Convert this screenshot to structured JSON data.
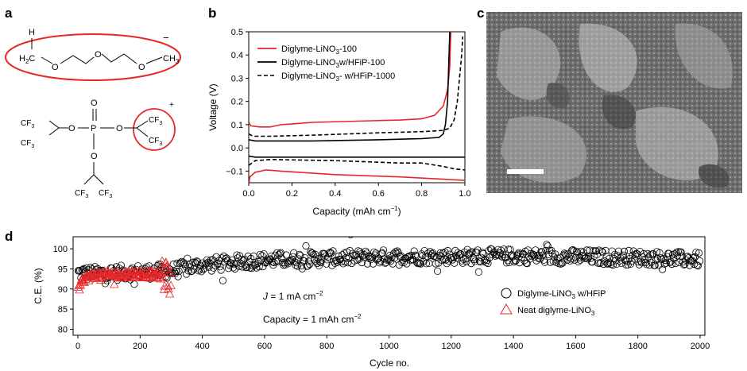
{
  "panel_labels": {
    "a": "a",
    "b": "b",
    "c": "c",
    "d": "d"
  },
  "colors": {
    "red": "#e8262a",
    "black": "#000000",
    "sem_bg": "#7a7a7a"
  },
  "panel_a": {
    "mol1": {
      "h": "H",
      "h2c": "H",
      "h2c_sub": "2",
      "h2c_tail": "C",
      "o": "O",
      "ch3": "CH",
      "ch3_sub": "3",
      "charge": "−"
    },
    "mol2": {
      "cf3": "CF",
      "cf3_sub": "3",
      "o": "O",
      "p": "P",
      "charge": "+"
    }
  },
  "panel_c": {
    "image": "sem-micrograph",
    "scale_bar": "scale-bar"
  },
  "chart_data": [
    {
      "type": "line",
      "panel": "b",
      "xlabel_main": "Capacity (mAh cm",
      "xlabel_sup": "−1",
      "xlabel_end": ")",
      "ylabel": "Voltage (V)",
      "xlim": [
        0,
        1.0
      ],
      "ylim": [
        -0.15,
        0.5
      ],
      "xticks": [
        "0.0",
        "0.2",
        "0.4",
        "0.6",
        "0.8",
        "1.0"
      ],
      "yticks": [
        "−0.1",
        "0.0",
        "0.1",
        "0.2",
        "0.3",
        "0.4",
        "0.5"
      ],
      "xtick_values": [
        0,
        0.2,
        0.4,
        0.6,
        0.8,
        1.0
      ],
      "ytick_values": [
        -0.1,
        0,
        0.1,
        0.2,
        0.3,
        0.4,
        0.5
      ],
      "legend_position": "top-left",
      "legend": [
        {
          "main": "Diglyme-LiNO",
          "sub": "3",
          "tail": "-100"
        },
        {
          "main": "Diglyme-LiNO",
          "sub": "3",
          "tail": "w/HFiP-100"
        },
        {
          "main": "Diglyme-LiNO",
          "sub": "3",
          "tail": "- w/HFiP-1000"
        }
      ],
      "series": [
        {
          "color": "#e8262a",
          "dash": "solid",
          "charge": [
            [
              0,
              0.11
            ],
            [
              0.01,
              0.095
            ],
            [
              0.05,
              0.09
            ],
            [
              0.1,
              0.09
            ],
            [
              0.15,
              0.1
            ],
            [
              0.3,
              0.11
            ],
            [
              0.5,
              0.115
            ],
            [
              0.7,
              0.12
            ],
            [
              0.8,
              0.125
            ],
            [
              0.86,
              0.14
            ],
            [
              0.9,
              0.18
            ],
            [
              0.92,
              0.25
            ],
            [
              0.93,
              0.35
            ],
            [
              0.935,
              0.5
            ]
          ],
          "discharge": [
            [
              0,
              -0.16
            ],
            [
              0.005,
              -0.125
            ],
            [
              0.03,
              -0.105
            ],
            [
              0.08,
              -0.095
            ],
            [
              0.15,
              -0.1
            ],
            [
              0.4,
              -0.115
            ],
            [
              0.7,
              -0.125
            ],
            [
              0.9,
              -0.135
            ],
            [
              1.0,
              -0.14
            ]
          ]
        },
        {
          "color": "#000000",
          "dash": "solid",
          "charge": [
            [
              0,
              0.035
            ],
            [
              0.03,
              0.03
            ],
            [
              0.3,
              0.03
            ],
            [
              0.6,
              0.035
            ],
            [
              0.8,
              0.04
            ],
            [
              0.88,
              0.045
            ],
            [
              0.9,
              0.06
            ],
            [
              0.91,
              0.1
            ],
            [
              0.92,
              0.2
            ],
            [
              0.925,
              0.35
            ],
            [
              0.93,
              0.5
            ]
          ],
          "discharge": [
            [
              0,
              -0.035
            ],
            [
              0.03,
              -0.04
            ],
            [
              0.5,
              -0.04
            ],
            [
              0.8,
              -0.04
            ],
            [
              1.0,
              -0.04
            ]
          ]
        },
        {
          "color": "#000000",
          "dash": "dashed",
          "charge": [
            [
              0,
              0.06
            ],
            [
              0.02,
              0.05
            ],
            [
              0.1,
              0.05
            ],
            [
              0.3,
              0.055
            ],
            [
              0.6,
              0.065
            ],
            [
              0.8,
              0.07
            ],
            [
              0.9,
              0.075
            ],
            [
              0.93,
              0.085
            ],
            [
              0.95,
              0.12
            ],
            [
              0.965,
              0.2
            ],
            [
              0.975,
              0.3
            ],
            [
              0.985,
              0.4
            ],
            [
              0.99,
              0.48
            ]
          ],
          "discharge": [
            [
              0,
              -0.075
            ],
            [
              0.03,
              -0.055
            ],
            [
              0.1,
              -0.05
            ],
            [
              0.4,
              -0.055
            ],
            [
              0.7,
              -0.065
            ],
            [
              0.8,
              -0.065
            ],
            [
              0.9,
              -0.08
            ],
            [
              0.95,
              -0.09
            ],
            [
              1.0,
              -0.095
            ]
          ]
        }
      ]
    },
    {
      "type": "scatter",
      "panel": "d",
      "xlabel": "Cycle no.",
      "ylabel": "C.E. (%)",
      "xlim": [
        0,
        2000
      ],
      "ylim": [
        80,
        103
      ],
      "xticks": [
        "0",
        "200",
        "400",
        "600",
        "800",
        "1000",
        "1200",
        "1400",
        "1600",
        "1800",
        "2000"
      ],
      "yticks": [
        "80",
        "85",
        "90",
        "95",
        "100"
      ],
      "xtick_values": [
        0,
        200,
        400,
        600,
        800,
        1000,
        1200,
        1400,
        1600,
        1800,
        2000
      ],
      "ytick_values": [
        80,
        85,
        90,
        95,
        100
      ],
      "annotations": [
        {
          "main": "J",
          "text": " = 1 mA cm",
          "sup": "−2"
        },
        {
          "main": "Capacity = 1 mAh cm",
          "sup": "−2"
        }
      ],
      "legend_position": "bottom-right",
      "legend": [
        {
          "marker": "circle",
          "main": "Diglyme-LiNO",
          "sub": "3",
          "tail": " w/HFiP"
        },
        {
          "marker": "triangle",
          "main": "Neat diglyme-LiNO",
          "sub": "3",
          "tail": ""
        }
      ],
      "series": [
        {
          "marker": "circle",
          "color": "#000000",
          "cycles": [
            1,
            2000
          ],
          "mean_trend": [
            [
              1,
              94.0
            ],
            [
              50,
              93.8
            ],
            [
              300,
              94.5
            ],
            [
              400,
              96.0
            ],
            [
              600,
              97.2
            ],
            [
              1000,
              98.0
            ],
            [
              1400,
              98.2
            ],
            [
              1800,
              97.8
            ],
            [
              2000,
              97.3
            ]
          ],
          "spread": 2.3
        },
        {
          "marker": "triangle",
          "color": "#e8262a",
          "cycles": [
            1,
            300
          ],
          "mean_trend": [
            [
              1,
              90.0
            ],
            [
              20,
              92.5
            ],
            [
              50,
              93.5
            ],
            [
              200,
              93.8
            ],
            [
              260,
              93.5
            ],
            [
              300,
              93.0
            ]
          ],
          "spread": 1.2
        }
      ]
    }
  ]
}
